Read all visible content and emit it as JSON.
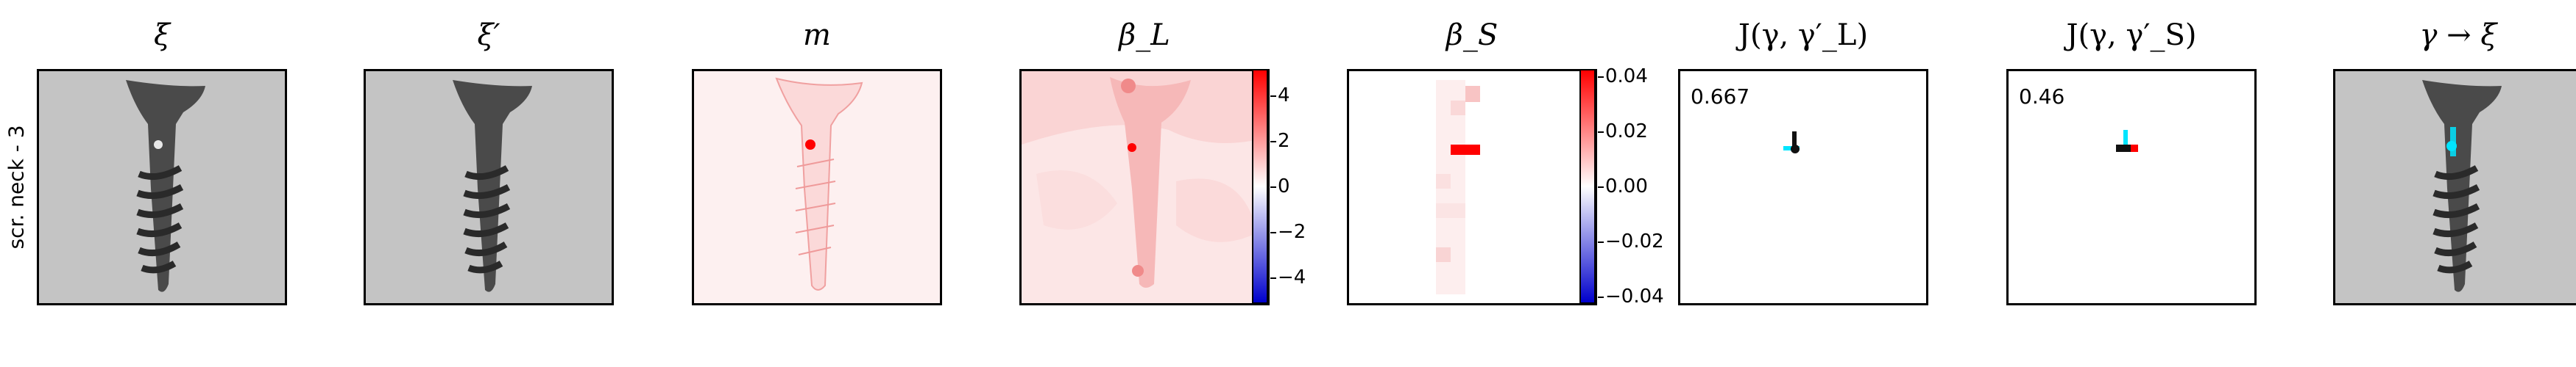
{
  "row_label": "scr. neck - 3",
  "panels": [
    {
      "title": "ξ"
    },
    {
      "title": "ξ′"
    },
    {
      "title": "m"
    },
    {
      "title": "β_L"
    },
    {
      "title": "β_S"
    },
    {
      "title": "J(γ, γ′_L)",
      "score": "0.667"
    },
    {
      "title": "J(γ, γ′_S)",
      "score": "0.46"
    },
    {
      "title": "γ → ξ"
    }
  ],
  "colorbar_L": {
    "ticks": [
      "4",
      "2",
      "0",
      "−2",
      "−4"
    ],
    "min": -5,
    "max": 5
  },
  "colorbar_S": {
    "ticks": [
      "0.04",
      "0.02",
      "0.00",
      "−0.02",
      "−0.04"
    ],
    "min": -0.045,
    "max": 0.045
  },
  "colors": {
    "positive": "#ff0000",
    "negative": "#0000cc",
    "overlay": "#00e5ff"
  }
}
